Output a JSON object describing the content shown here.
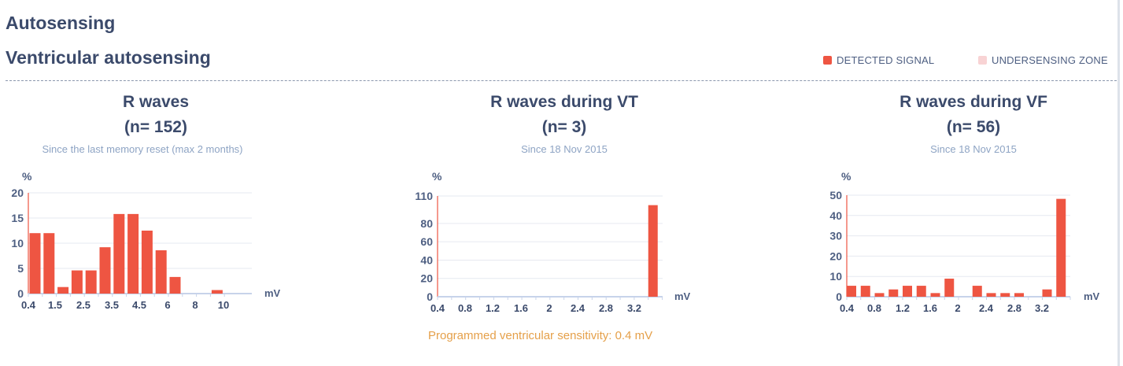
{
  "page": {
    "title": "Autosensing"
  },
  "section": {
    "title": "Ventricular autosensing"
  },
  "legend": [
    {
      "label": "DETECTED SIGNAL",
      "color": "#ee5542"
    },
    {
      "label": "UNDERSENSING ZONE",
      "color": "#f8d3d4"
    }
  ],
  "note": {
    "sensitivity": "Programmed ventricular sensitivity:  0.4 mV"
  },
  "chart_data": [
    {
      "type": "bar",
      "title": "R waves",
      "n_label": "(n= 152)",
      "subtitle": "Since the last memory reset (max 2 months)",
      "ylabel": "%",
      "xlabel": "mV",
      "ylim": [
        0,
        20
      ],
      "yticks": [
        0,
        5,
        10,
        15,
        20
      ],
      "xtick_labels": [
        "0.4",
        "1.5",
        "2.5",
        "3.5",
        "4.5",
        "6",
        "8",
        "10"
      ],
      "bar_count": 14,
      "values": [
        12,
        12,
        1.3,
        4.6,
        4.6,
        9.2,
        15.8,
        15.8,
        12.5,
        8.6,
        3.3,
        0,
        0,
        0.7
      ],
      "bar_color": "#ee5542",
      "grid": true
    },
    {
      "type": "bar",
      "title": "R waves during VT",
      "n_label": "(n= 3)",
      "subtitle": "Since 18 Nov 2015",
      "ylabel": "%",
      "xlabel": "mV",
      "ylim": [
        0,
        110
      ],
      "yticks": [
        0,
        20,
        40,
        60,
        80,
        110
      ],
      "xtick_labels": [
        "0.4",
        "0.8",
        "1.2",
        "1.6",
        "2",
        "2.4",
        "2.8",
        "3.2"
      ],
      "bar_count": 16,
      "values": [
        0,
        0,
        0,
        0,
        0,
        0,
        0,
        0,
        0,
        0,
        0,
        0,
        0,
        0,
        0,
        100
      ],
      "bar_color": "#ee5542",
      "grid": true
    },
    {
      "type": "bar",
      "title": "R waves during VF",
      "n_label": "(n= 56)",
      "subtitle": "Since 18 Nov 2015",
      "ylabel": "%",
      "xlabel": "mV",
      "ylim": [
        0,
        50
      ],
      "yticks": [
        0,
        10,
        20,
        30,
        40,
        50
      ],
      "xtick_labels": [
        "0.4",
        "0.8",
        "1.2",
        "1.6",
        "2",
        "2.4",
        "2.8",
        "3.2"
      ],
      "bar_count": 16,
      "values": [
        5.4,
        5.4,
        1.8,
        3.6,
        5.4,
        5.4,
        1.8,
        8.9,
        0,
        5.4,
        1.8,
        1.8,
        1.8,
        0,
        3.6,
        48.2
      ],
      "bar_color": "#ee5542",
      "grid": true
    }
  ]
}
